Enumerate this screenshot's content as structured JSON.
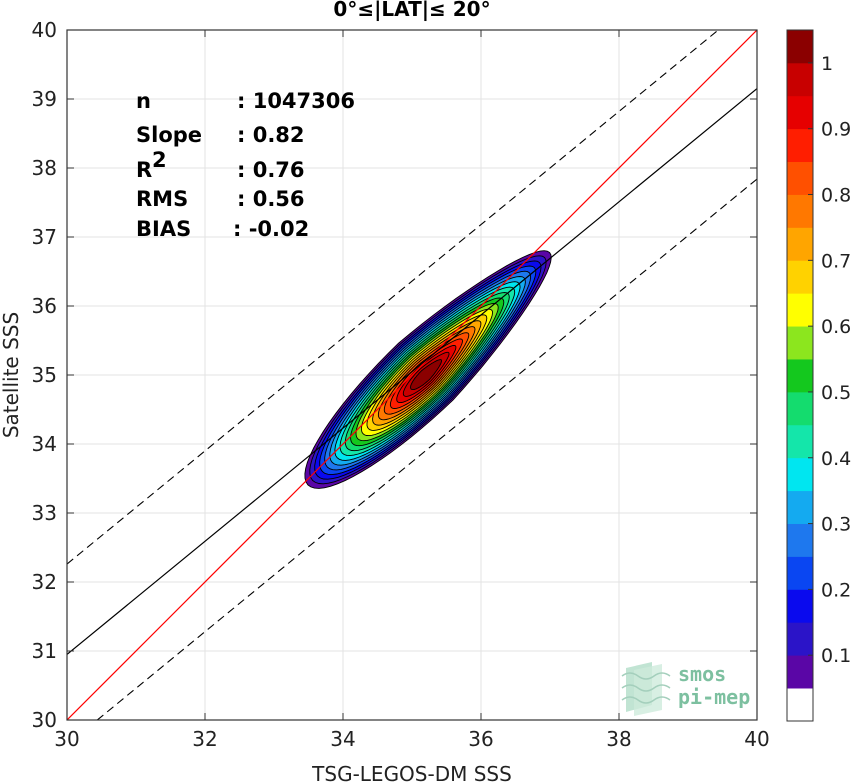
{
  "chart_data": {
    "type": "heatmap",
    "title": "0°≤|LAT|≤ 20°",
    "xlabel": "TSG-LEGOS-DM SSS",
    "ylabel": "Satellite SSS",
    "xlim": [
      30,
      40
    ],
    "ylim": [
      30,
      40
    ],
    "x_ticks": [
      "30",
      "32",
      "34",
      "36",
      "38",
      "40"
    ],
    "y_ticks": [
      "30",
      "31",
      "32",
      "33",
      "34",
      "35",
      "36",
      "37",
      "38",
      "39",
      "40"
    ],
    "grid": true,
    "stats": [
      {
        "label": "n",
        "value": ": 1047306"
      },
      {
        "label": "Slope",
        "value": ": 0.82"
      },
      {
        "label": "R",
        "sup": "2",
        "value": ": 0.76"
      },
      {
        "label": "RMS",
        "value": ": 0.56"
      },
      {
        "label": "BIAS",
        "value": ": -0.02"
      }
    ],
    "lines": {
      "identity": {
        "color": "#ff0000",
        "x": [
          30,
          40
        ],
        "y": [
          30,
          40
        ]
      },
      "regression": {
        "color": "#000000",
        "slope": 0.82,
        "y_at_30": 30.95
      },
      "bounds_offset": 1.31
    },
    "density_center": [
      35.2,
      35.05
    ],
    "colorbar": {
      "ticks": [
        "0.1",
        "0.2",
        "0.3",
        "0.4",
        "0.5",
        "0.6",
        "0.7",
        "0.8",
        "0.9",
        "1"
      ],
      "colors": [
        "#ffffff",
        "#5a06a6",
        "#2b14c8",
        "#0a0aee",
        "#0a46f2",
        "#1e78ee",
        "#14aaf0",
        "#00e6f0",
        "#14e6aa",
        "#14dc6e",
        "#14c81e",
        "#8ce61e",
        "#ffff00",
        "#ffd200",
        "#ffa500",
        "#ff7800",
        "#ff5000",
        "#ff1e00",
        "#e60000",
        "#c80000",
        "#8b0000"
      ]
    },
    "logo": {
      "line1": "smos",
      "line2": "pi-mep"
    }
  }
}
